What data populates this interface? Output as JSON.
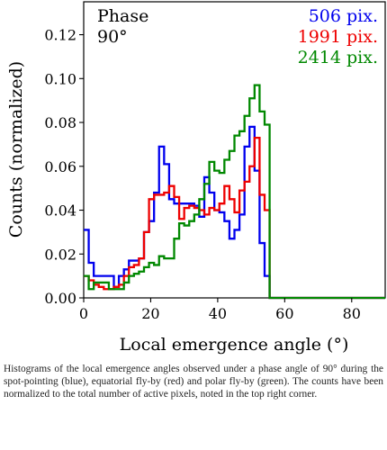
{
  "chart_data": {
    "type": "histogram",
    "xlabel": "Local emergence angle (°)",
    "ylabel": "Counts (normalized)",
    "xlim": [
      0,
      90
    ],
    "ylim": [
      0,
      0.135
    ],
    "x_ticks": [
      0,
      20,
      40,
      60,
      80
    ],
    "y_ticks": [
      0.0,
      0.02,
      0.04,
      0.06,
      0.08,
      0.1,
      0.12
    ],
    "x_tick_labels": [
      "0",
      "20",
      "40",
      "60",
      "80"
    ],
    "y_tick_labels": [
      "0.00",
      "0.02",
      "0.04",
      "0.06",
      "0.08",
      "0.10",
      "0.12"
    ],
    "bin_edges": [
      0,
      1.5,
      3,
      4.5,
      6,
      7.5,
      9,
      10.5,
      12,
      13.5,
      15,
      16.5,
      18,
      19.5,
      21,
      22.5,
      24,
      25.5,
      27,
      28.5,
      30,
      31.5,
      33,
      34.5,
      36,
      37.5,
      39,
      40.5,
      42,
      43.5,
      45,
      46.5,
      48,
      49.5,
      51,
      52.5,
      54,
      55.5,
      57,
      58.5
    ],
    "annotation": {
      "line1": "Phase",
      "line2": "90°"
    },
    "series": [
      {
        "name": "506 pix.",
        "color": "#0000ee",
        "counts": [
          0.031,
          0.016,
          0.01,
          0.01,
          0.01,
          0.01,
          0.005,
          0.01,
          0.013,
          0.017,
          0.017,
          0.018,
          0.03,
          0.035,
          0.048,
          0.069,
          0.061,
          0.045,
          0.043,
          0.043,
          0.043,
          0.043,
          0.042,
          0.037,
          0.055,
          0.048,
          0.04,
          0.039,
          0.035,
          0.027,
          0.031,
          0.038,
          0.069,
          0.078,
          0.058,
          0.025,
          0.01,
          0.0,
          0.0
        ]
      },
      {
        "name": "1991 pix.",
        "color": "#ee0000",
        "counts": [
          0.01,
          0.008,
          0.006,
          0.005,
          0.004,
          0.004,
          0.005,
          0.006,
          0.01,
          0.014,
          0.015,
          0.018,
          0.03,
          0.045,
          0.047,
          0.047,
          0.048,
          0.051,
          0.046,
          0.036,
          0.041,
          0.042,
          0.041,
          0.04,
          0.038,
          0.041,
          0.04,
          0.043,
          0.051,
          0.045,
          0.039,
          0.049,
          0.053,
          0.06,
          0.073,
          0.047,
          0.04,
          0.0,
          0.0
        ]
      },
      {
        "name": "2414 pix.",
        "color": "#008800",
        "counts": [
          0.01,
          0.004,
          0.007,
          0.007,
          0.007,
          0.004,
          0.004,
          0.004,
          0.007,
          0.01,
          0.011,
          0.012,
          0.014,
          0.016,
          0.015,
          0.019,
          0.018,
          0.018,
          0.027,
          0.034,
          0.033,
          0.035,
          0.038,
          0.045,
          0.052,
          0.062,
          0.058,
          0.057,
          0.063,
          0.067,
          0.074,
          0.076,
          0.083,
          0.091,
          0.097,
          0.085,
          0.079,
          0.0,
          0.0
        ]
      }
    ]
  },
  "caption": "Histograms of the local emergence angles observed under a phase angle of 90° during the spot-pointing (blue), equatorial fly-by (red) and polar fly-by (green). The counts have been normalized to the total number of active pixels, noted in the top right corner."
}
